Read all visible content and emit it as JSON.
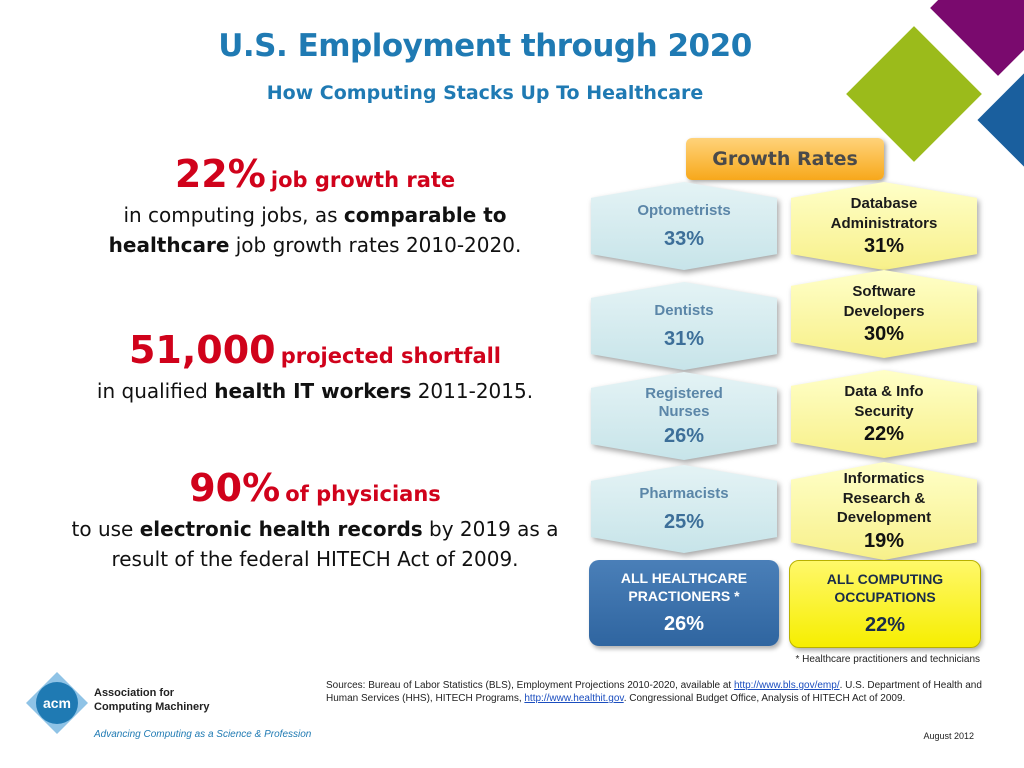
{
  "header": {
    "title": "U.S. Employment through 2020",
    "subtitle": "How Computing Stacks Up To Healthcare"
  },
  "stats": [
    {
      "number": "22%",
      "label": "job growth rate",
      "desc_pre": "in computing jobs, as ",
      "desc_bold": "comparable to healthcare",
      "desc_post": " job growth rates 2010-2020."
    },
    {
      "number": "51,000",
      "label": "projected shortfall",
      "desc_pre": "in qualified ",
      "desc_bold": "health IT workers",
      "desc_post": " 2011-2015."
    },
    {
      "number": "90%",
      "label": "of physicians",
      "desc_pre": "to use ",
      "desc_bold": "electronic health records",
      "desc_post": "  by 2019 as a result of the federal HITECH Act of 2009."
    }
  ],
  "growth": {
    "tag": "Growth Rates",
    "healthcare": [
      {
        "label": "Optometrists",
        "pct": "33%"
      },
      {
        "label": "Dentists",
        "pct": "31%"
      },
      {
        "label": "Registered Nurses",
        "pct": "26%"
      },
      {
        "label": "Pharmacists",
        "pct": "25%"
      }
    ],
    "computing": [
      {
        "label": "Database Administrators",
        "pct": "31%"
      },
      {
        "label": "Software Developers",
        "pct": "30%"
      },
      {
        "label": "Data & Info Security",
        "pct": "22%"
      },
      {
        "label": "Informatics Research & Development",
        "pct": "19%"
      }
    ],
    "total_healthcare": {
      "label": "ALL HEALTHCARE PRACTIONERS *",
      "pct": "26%"
    },
    "total_computing": {
      "label": "ALL COMPUTING OCCUPATIONS",
      "pct": "22%"
    }
  },
  "footnote": "* Healthcare practitioners and technicians",
  "sources": {
    "part1": "Sources: Bureau of Labor Statistics (BLS), Employment Projections 2010-2020, available at ",
    "link1": "http://www.bls.gov/emp/",
    "part2": ". U.S. Department of Health and Human Services (HHS), HITECH Programs, ",
    "link2": "http://www.healthit.gov",
    "part3": ". Congressional Budget Office, Analysis of HITECH Act of 2009."
  },
  "date": "August 2012",
  "logo": {
    "abbr": "acm",
    "name_line1": "Association for",
    "name_line2": "Computing Machinery",
    "tagline": "Advancing Computing as a Science & Profession"
  },
  "colors": {
    "title": "#1f7ab3",
    "accent_red": "#d0021b",
    "diamond_purple": "#7a0a6e",
    "diamond_green": "#9bbb1b",
    "diamond_blue": "#1a5f9e",
    "tag_orange": "#f7a81b"
  }
}
